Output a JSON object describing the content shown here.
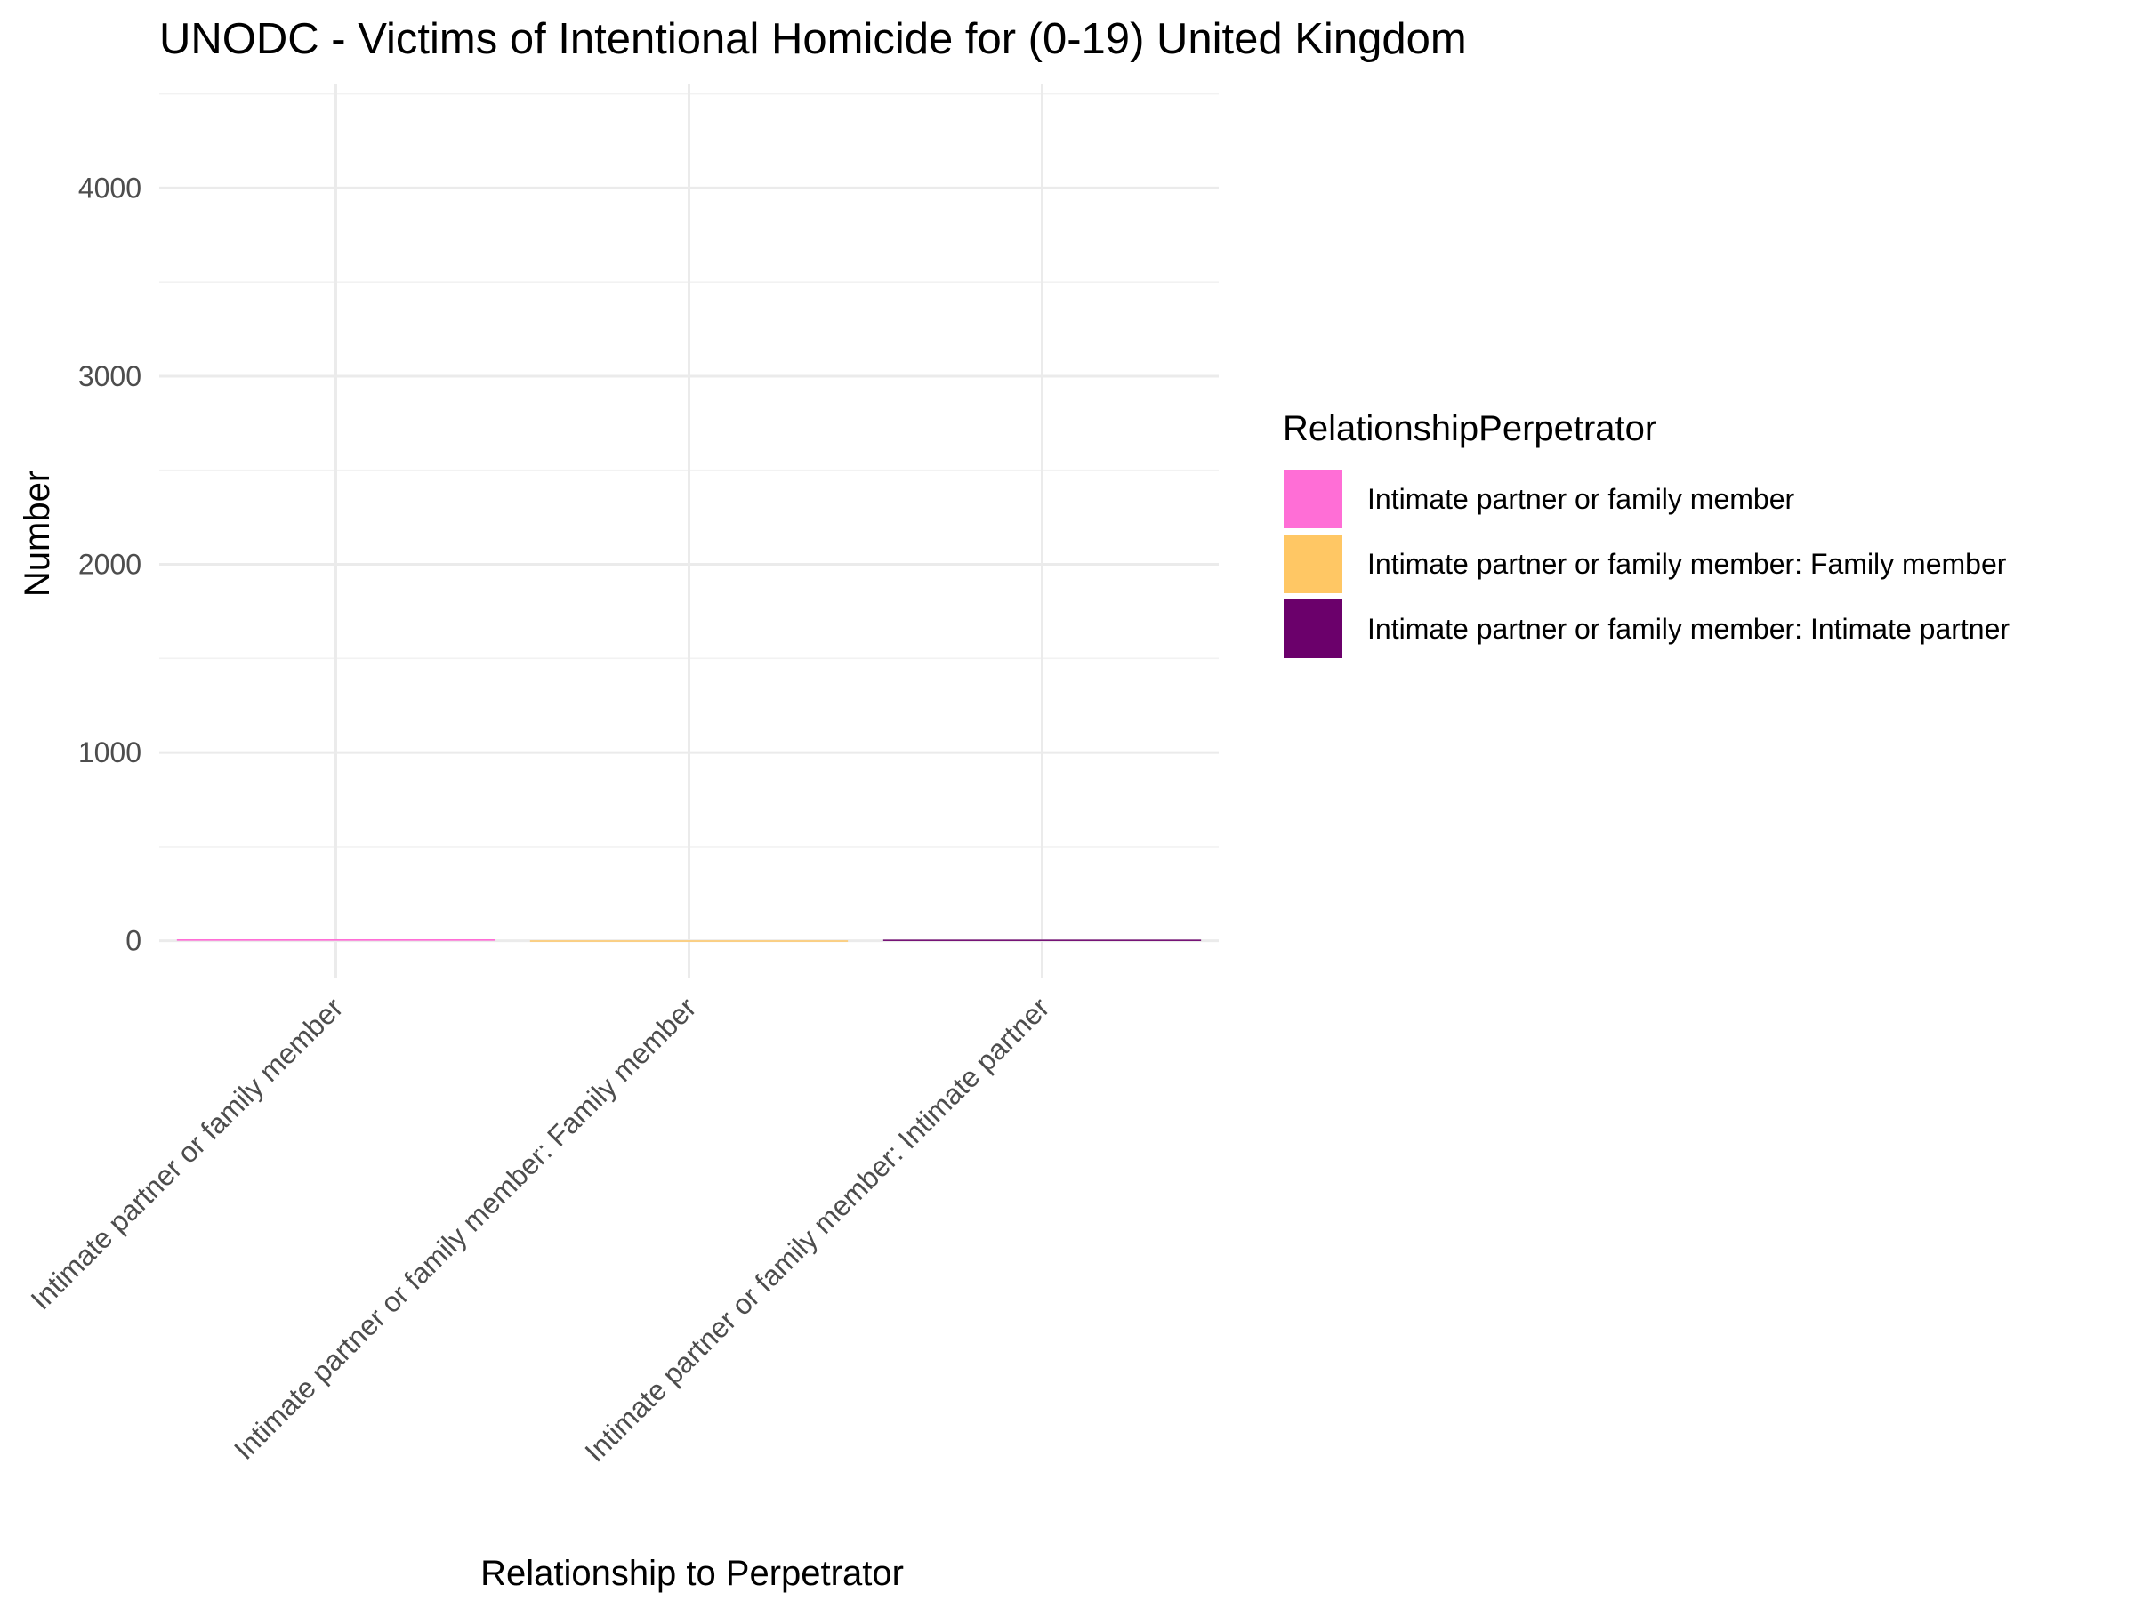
{
  "chart_data": {
    "type": "bar",
    "title": "UNODC - Victims of Intentional Homicide for (0-19) United Kingdom",
    "xlabel": "Relationship to Perpetrator",
    "ylabel": "Number",
    "categories": [
      "Intimate partner or family member",
      "Intimate partner or family member: Family member",
      "Intimate partner or family member: Intimate partner"
    ],
    "values": [
      8,
      2,
      6
    ],
    "colors": [
      "#ff6ed6",
      "#ffc764",
      "#6b006b"
    ],
    "ylim": [
      -200,
      4550
    ],
    "yticks": [
      0,
      1000,
      2000,
      3000,
      4000
    ],
    "grid": true,
    "legend": {
      "title": "RelationshipPerpetrator",
      "placement": "right",
      "entries": [
        "Intimate partner or family member",
        "Intimate partner or family member: Family member",
        "Intimate partner or family member: Intimate partner"
      ]
    }
  }
}
